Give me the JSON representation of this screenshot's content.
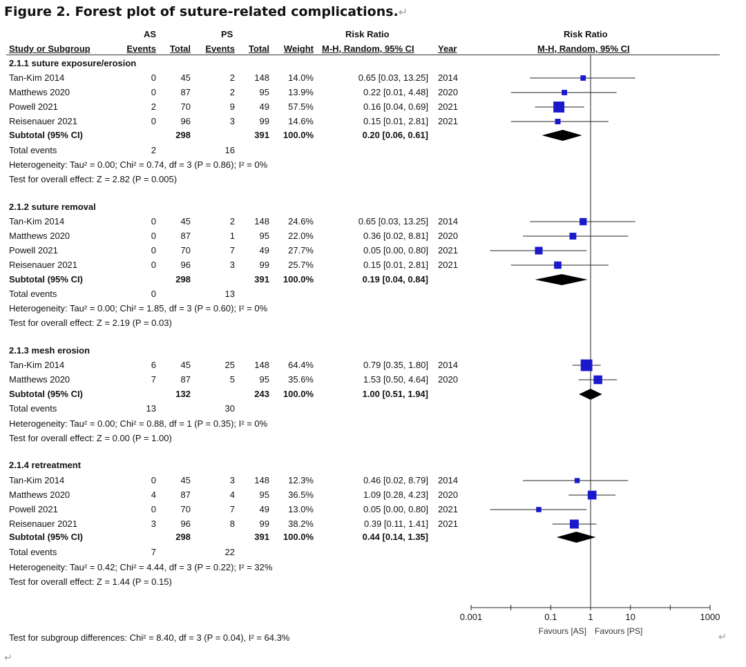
{
  "caption": "Figure 2. Forest plot of suture-related complications.",
  "return_mark": "↵",
  "header": {
    "as_group": "AS",
    "ps_group": "PS",
    "rr_label": "Risk Ratio",
    "rr_method": "M-H, Random, 95% CI",
    "plot_title": "Risk Ratio",
    "plot_method": "M-H, Random, 95% CI",
    "cols": {
      "study": "Study or Subgroup",
      "as_events": "Events",
      "as_total": "Total",
      "ps_events": "Events",
      "ps_total": "Total",
      "weight": "Weight",
      "year": "Year"
    }
  },
  "subtotal_label": "Subtotal (95% CI)",
  "total_events_label": "Total events",
  "chart_data": {
    "type": "forest",
    "x_scale": "log",
    "xlim": [
      0.001,
      1000
    ],
    "x_ticks": [
      "0.001",
      "0.1",
      "1",
      "10",
      "1000"
    ],
    "x_tick_values": [
      0.001,
      0.1,
      1,
      10,
      1000
    ],
    "favours_left": "Favours [AS]",
    "favours_right": "Favours [PS]",
    "subgroups": [
      {
        "title": "2.1.1 suture exposure/erosion",
        "studies": [
          {
            "name": "Tan-Kim 2014",
            "as_events": "0",
            "as_total": "45",
            "ps_events": "2",
            "ps_total": "148",
            "weight": "14.0%",
            "ci_text": "0.65 [0.03, 13.25]",
            "year": "2014",
            "rr": 0.65,
            "lo": 0.03,
            "hi": 13.25
          },
          {
            "name": "Matthews 2020",
            "as_events": "0",
            "as_total": "87",
            "ps_events": "2",
            "ps_total": "95",
            "weight": "13.9%",
            "ci_text": "0.22 [0.01, 4.48]",
            "year": "2020",
            "rr": 0.22,
            "lo": 0.01,
            "hi": 4.48
          },
          {
            "name": "Powell 2021",
            "as_events": "2",
            "as_total": "70",
            "ps_events": "9",
            "ps_total": "49",
            "weight": "57.5%",
            "ci_text": "0.16 [0.04, 0.69]",
            "year": "2021",
            "rr": 0.16,
            "lo": 0.04,
            "hi": 0.69
          },
          {
            "name": "Reisenauer 2021",
            "as_events": "0",
            "as_total": "96",
            "ps_events": "3",
            "ps_total": "99",
            "weight": "14.6%",
            "ci_text": "0.15 [0.01, 2.81]",
            "year": "2021",
            "rr": 0.15,
            "lo": 0.01,
            "hi": 2.81
          }
        ],
        "subtotal": {
          "as_total": "298",
          "ps_total": "391",
          "weight": "100.0%",
          "ci_text": "0.20 [0.06, 0.61]",
          "rr": 0.2,
          "lo": 0.06,
          "hi": 0.61
        },
        "total_events": {
          "as": "2",
          "ps": "16"
        },
        "heterogeneity": "Heterogeneity: Tau² = 0.00; Chi² = 0.74, df = 3 (P = 0.86); I² = 0%",
        "overall": "Test for overall effect: Z = 2.82 (P = 0.005)"
      },
      {
        "title": "2.1.2 suture removal",
        "studies": [
          {
            "name": "Tan-Kim 2014",
            "as_events": "0",
            "as_total": "45",
            "ps_events": "2",
            "ps_total": "148",
            "weight": "24.6%",
            "ci_text": "0.65 [0.03, 13.25]",
            "year": "2014",
            "rr": 0.65,
            "lo": 0.03,
            "hi": 13.25
          },
          {
            "name": "Matthews 2020",
            "as_events": "0",
            "as_total": "87",
            "ps_events": "1",
            "ps_total": "95",
            "weight": "22.0%",
            "ci_text": "0.36 [0.02, 8.81]",
            "year": "2020",
            "rr": 0.36,
            "lo": 0.02,
            "hi": 8.81
          },
          {
            "name": "Powell 2021",
            "as_events": "0",
            "as_total": "70",
            "ps_events": "7",
            "ps_total": "49",
            "weight": "27.7%",
            "ci_text": "0.05 [0.00, 0.80]",
            "year": "2021",
            "rr": 0.05,
            "lo": 0.003,
            "hi": 0.8
          },
          {
            "name": "Reisenauer 2021",
            "as_events": "0",
            "as_total": "96",
            "ps_events": "3",
            "ps_total": "99",
            "weight": "25.7%",
            "ci_text": "0.15 [0.01, 2.81]",
            "year": "2021",
            "rr": 0.15,
            "lo": 0.01,
            "hi": 2.81
          }
        ],
        "subtotal": {
          "as_total": "298",
          "ps_total": "391",
          "weight": "100.0%",
          "ci_text": "0.19 [0.04, 0.84]",
          "rr": 0.19,
          "lo": 0.04,
          "hi": 0.84
        },
        "total_events": {
          "as": "0",
          "ps": "13"
        },
        "heterogeneity": "Heterogeneity: Tau² = 0.00; Chi² = 1.85, df = 3 (P = 0.60); I² = 0%",
        "overall": "Test for overall effect: Z = 2.19 (P = 0.03)"
      },
      {
        "title": "2.1.3 mesh erosion",
        "studies": [
          {
            "name": "Tan-Kim 2014",
            "as_events": "6",
            "as_total": "45",
            "ps_events": "25",
            "ps_total": "148",
            "weight": "64.4%",
            "ci_text": "0.79 [0.35, 1.80]",
            "year": "2014",
            "rr": 0.79,
            "lo": 0.35,
            "hi": 1.8
          },
          {
            "name": "Matthews 2020",
            "as_events": "7",
            "as_total": "87",
            "ps_events": "5",
            "ps_total": "95",
            "weight": "35.6%",
            "ci_text": "1.53 [0.50, 4.64]",
            "year": "2020",
            "rr": 1.53,
            "lo": 0.5,
            "hi": 4.64
          }
        ],
        "subtotal": {
          "as_total": "132",
          "ps_total": "243",
          "weight": "100.0%",
          "ci_text": "1.00 [0.51, 1.94]",
          "rr": 1.0,
          "lo": 0.51,
          "hi": 1.94
        },
        "total_events": {
          "as": "13",
          "ps": "30"
        },
        "heterogeneity": "Heterogeneity: Tau² = 0.00; Chi² = 0.88, df = 1 (P = 0.35); I² = 0%",
        "overall": "Test for overall effect: Z = 0.00 (P = 1.00)"
      },
      {
        "title": "2.1.4 retreatment",
        "studies": [
          {
            "name": "Tan-Kim 2014",
            "as_events": "0",
            "as_total": "45",
            "ps_events": "3",
            "ps_total": "148",
            "weight": "12.3%",
            "ci_text": "0.46 [0.02, 8.79]",
            "year": "2014",
            "rr": 0.46,
            "lo": 0.02,
            "hi": 8.79
          },
          {
            "name": "Matthews 2020",
            "as_events": "4",
            "as_total": "87",
            "ps_events": "4",
            "ps_total": "95",
            "weight": "36.5%",
            "ci_text": "1.09 [0.28, 4.23]",
            "year": "2020",
            "rr": 1.09,
            "lo": 0.28,
            "hi": 4.23
          },
          {
            "name": "Powell 2021",
            "as_events": "0",
            "as_total": "70",
            "ps_events": "7",
            "ps_total": "49",
            "weight": "13.0%",
            "ci_text": "0.05 [0.00, 0.80]",
            "year": "2021",
            "rr": 0.05,
            "lo": 0.003,
            "hi": 0.8
          },
          {
            "name": "Reisenauer 2021",
            "as_events": "3",
            "as_total": "96",
            "ps_events": "8",
            "ps_total": "99",
            "weight": "38.2%",
            "ci_text": "0.39 [0.11, 1.41]",
            "year": "2021",
            "rr": 0.39,
            "lo": 0.11,
            "hi": 1.41
          }
        ],
        "subtotal": {
          "as_total": "298",
          "ps_total": "391",
          "weight": "100.0%",
          "ci_text": "0.44 [0.14, 1.35]",
          "rr": 0.44,
          "lo": 0.14,
          "hi": 1.35
        },
        "total_events": {
          "as": "7",
          "ps": "22"
        },
        "heterogeneity": "Heterogeneity: Tau² = 0.42; Chi² = 4.44, df = 3 (P = 0.22); I² = 32%",
        "overall": "Test for overall effect: Z = 1.44 (P = 0.15)"
      }
    ],
    "subgroup_differences": "Test for subgroup differences: Chi² = 8.40, df = 3 (P = 0.04), I² = 64.3%"
  }
}
